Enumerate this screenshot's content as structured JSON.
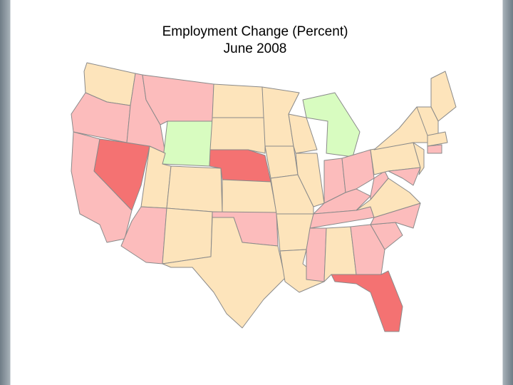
{
  "map": {
    "title": "Employment Change (Percent)",
    "subtitle": "June 2008"
  }
}
